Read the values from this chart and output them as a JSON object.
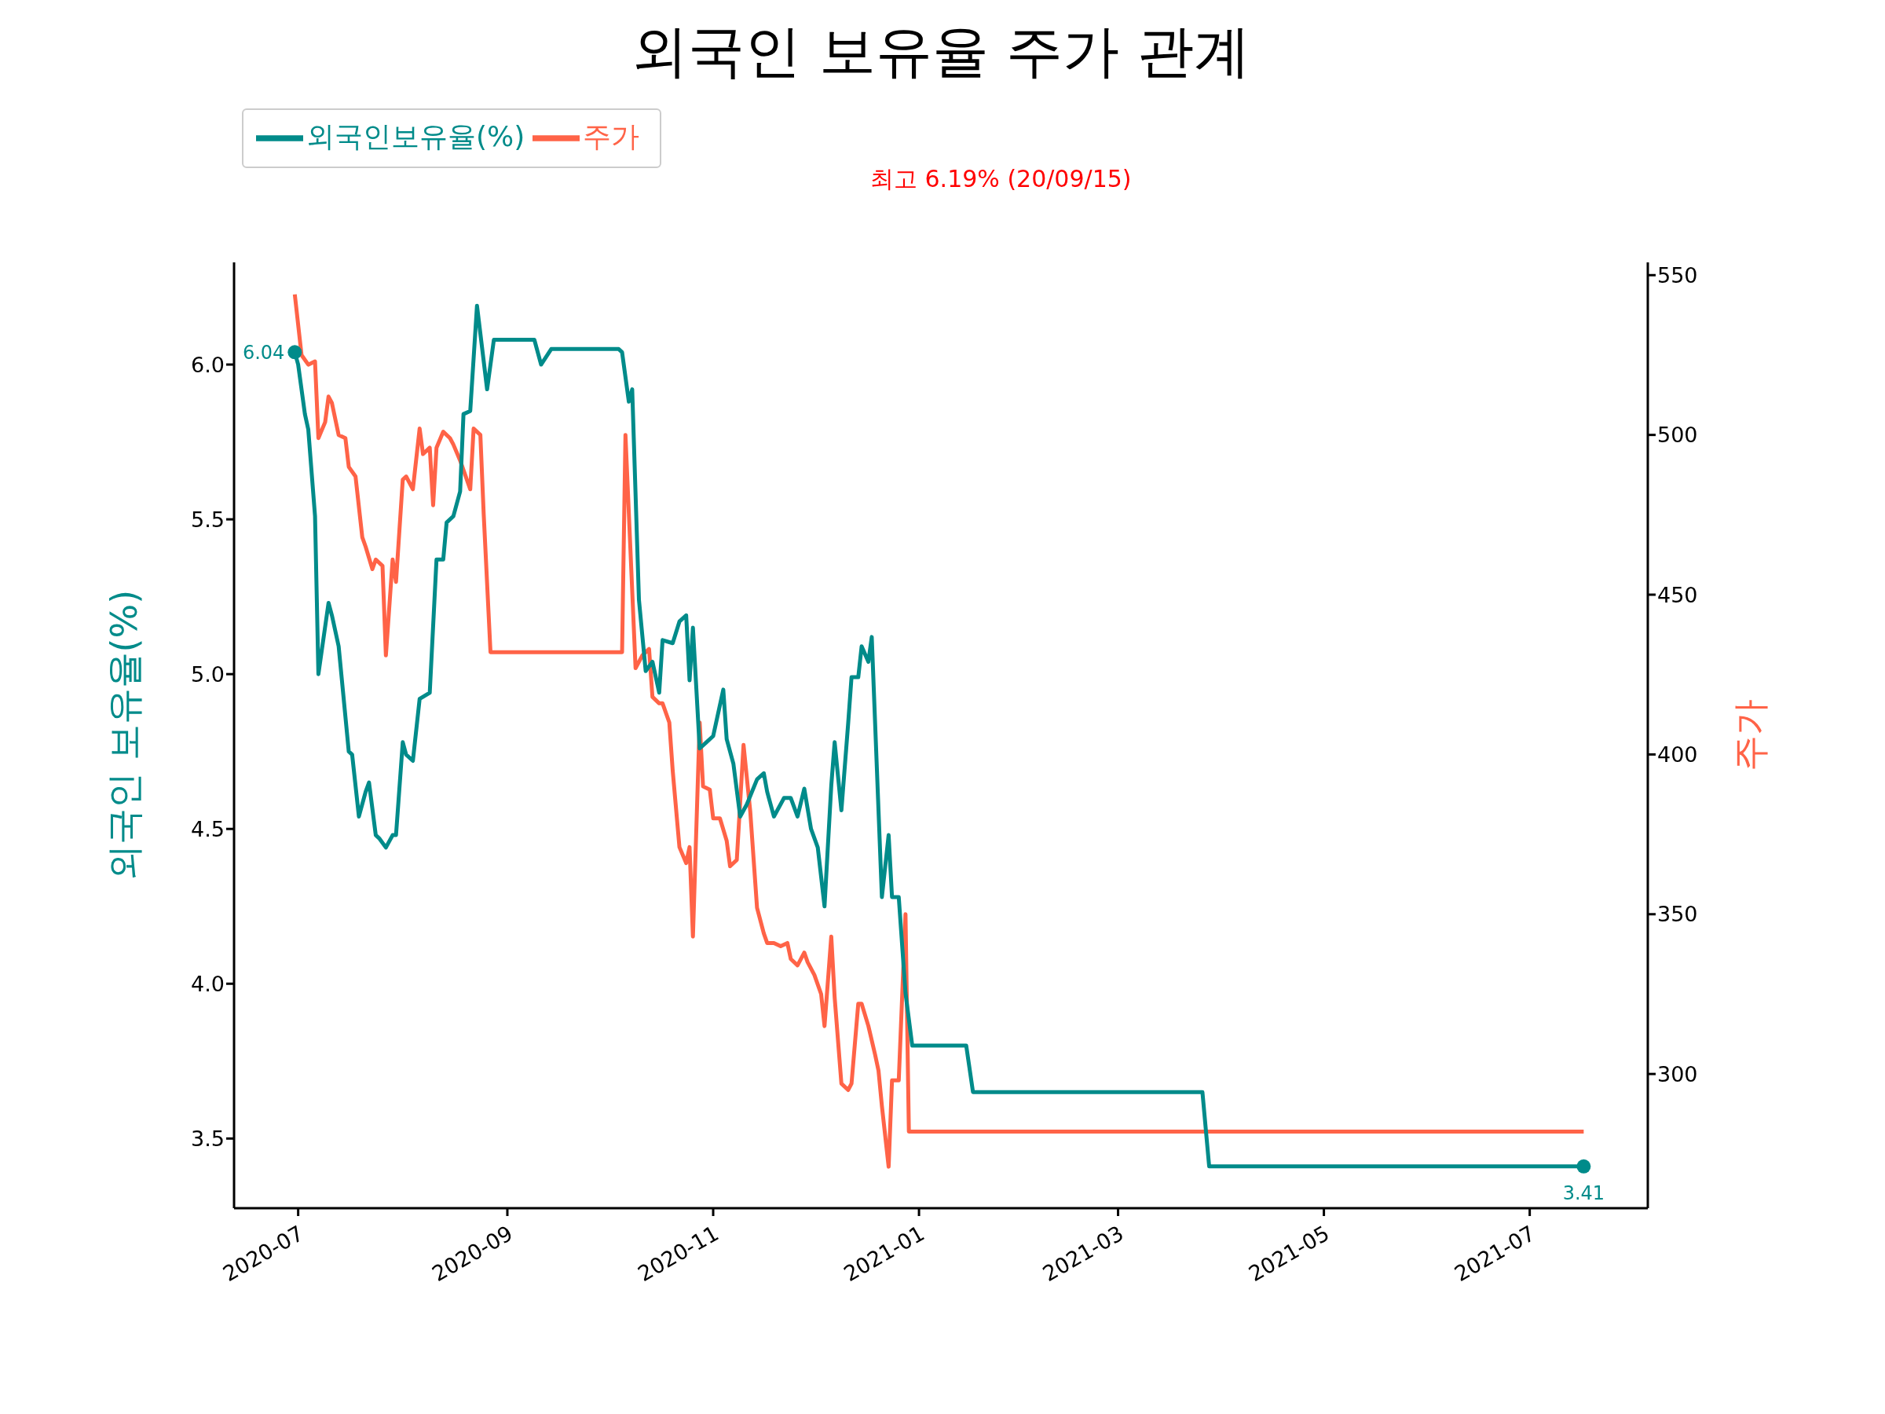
{
  "chart_data": {
    "type": "line",
    "title": "외국인 보유율 주가 관계",
    "ylabel": "외국인 보유율(%)",
    "y2label": "주가",
    "legend": "top left",
    "xlim": [
      "2020-06-12",
      "2021-08-05"
    ],
    "xticks": [
      "2020-07",
      "2020-09",
      "2020-11",
      "2021-01",
      "2021-03",
      "2021-05",
      "2021-07"
    ],
    "ylim": [
      3.275,
      6.33
    ],
    "yticks": [
      3.5,
      {
        "value": 4,
        "label": "4.0"
      },
      4.5,
      {
        "value": 5,
        "label": "5.0"
      },
      5.5,
      {
        "value": 6,
        "label": "6.0"
      }
    ],
    "y2lim": [
      258,
      554
    ],
    "y2ticks": [
      300,
      350,
      400,
      450,
      500,
      550
    ],
    "series": [
      {
        "name": "외국인보유율(%)",
        "color": "#008b8a",
        "x": [
          "2020-06-30",
          "2020-07-01",
          "2020-07-03",
          "2020-07-04",
          "2020-07-06",
          "2020-07-07",
          "2020-07-10",
          "2020-07-11",
          "2020-07-13",
          "2020-07-16",
          "2020-07-17",
          "2020-07-19",
          "2020-07-21",
          "2020-07-22",
          "2020-07-24",
          "2020-07-25",
          "2020-07-27",
          "2020-07-29",
          "2020-07-30",
          "2020-08-01",
          "2020-08-02",
          "2020-08-04",
          "2020-08-06",
          "2020-08-09",
          "2020-08-11",
          "2020-08-13",
          "2020-08-14",
          "2020-08-16",
          "2020-08-18",
          "2020-08-19",
          "2020-08-21",
          "2020-08-23",
          "2020-08-26",
          "2020-08-28",
          "2020-09-09",
          "2020-09-11",
          "2020-09-14",
          "2020-10-04",
          "2020-10-05",
          "2020-10-07",
          "2020-10-08",
          "2020-10-10",
          "2020-10-12",
          "2020-10-14",
          "2020-10-16",
          "2020-10-17",
          "2020-10-20",
          "2020-10-22",
          "2020-10-24",
          "2020-10-25",
          "2020-10-26",
          "2020-10-28",
          "2020-10-30",
          "2020-11-01",
          "2020-11-04",
          "2020-11-05",
          "2020-11-07",
          "2020-11-09",
          "2020-11-11",
          "2020-11-14",
          "2020-11-16",
          "2020-11-17",
          "2020-11-19",
          "2020-11-22",
          "2020-11-24",
          "2020-11-26",
          "2020-11-28",
          "2020-11-30",
          "2020-12-02",
          "2020-12-04",
          "2020-12-06",
          "2020-12-07",
          "2020-12-09",
          "2020-12-11",
          "2020-12-12",
          "2020-12-14",
          "2020-12-15",
          "2020-12-17",
          "2020-12-18",
          "2020-12-20",
          "2020-12-21",
          "2020-12-23",
          "2020-12-24",
          "2020-12-26",
          "2020-12-28",
          "2020-12-30",
          "2021-01-15",
          "2021-01-17",
          "2021-03-26",
          "2021-03-28",
          "2021-07-17"
        ],
        "values": [
          6.04,
          6.0,
          5.84,
          5.79,
          5.51,
          5.0,
          5.23,
          5.19,
          5.09,
          4.75,
          4.74,
          4.54,
          4.62,
          4.65,
          4.48,
          4.47,
          4.44,
          4.48,
          4.48,
          4.78,
          4.74,
          4.72,
          4.92,
          4.94,
          5.37,
          5.37,
          5.49,
          5.51,
          5.59,
          5.84,
          5.85,
          6.19,
          5.92,
          6.08,
          6.08,
          6.0,
          6.05,
          6.05,
          6.04,
          5.88,
          5.92,
          5.24,
          5.01,
          5.04,
          4.94,
          5.11,
          5.1,
          5.17,
          5.19,
          4.98,
          5.15,
          4.76,
          4.78,
          4.8,
          4.95,
          4.79,
          4.71,
          4.54,
          4.58,
          4.66,
          4.68,
          4.62,
          4.54,
          4.6,
          4.6,
          4.54,
          4.63,
          4.5,
          4.44,
          4.25,
          4.64,
          4.78,
          4.56,
          4.84,
          4.99,
          4.99,
          5.09,
          5.04,
          5.12,
          4.56,
          4.28,
          4.48,
          4.28,
          4.28,
          3.97,
          3.8,
          3.8,
          3.65,
          3.65,
          3.41,
          3.41
        ]
      },
      {
        "name": "주가",
        "color": "#ff6347",
        "axis": "y2",
        "x": [
          "2020-06-30",
          "2020-07-02",
          "2020-07-04",
          "2020-07-06",
          "2020-07-07",
          "2020-07-09",
          "2020-07-10",
          "2020-07-11",
          "2020-07-13",
          "2020-07-15",
          "2020-07-16",
          "2020-07-18",
          "2020-07-20",
          "2020-07-21",
          "2020-07-23",
          "2020-07-24",
          "2020-07-26",
          "2020-07-27",
          "2020-07-29",
          "2020-07-30",
          "2020-08-01",
          "2020-08-02",
          "2020-08-04",
          "2020-08-06",
          "2020-08-07",
          "2020-08-09",
          "2020-08-10",
          "2020-08-11",
          "2020-08-13",
          "2020-08-15",
          "2020-08-16",
          "2020-08-18",
          "2020-08-21",
          "2020-08-22",
          "2020-08-24",
          "2020-08-25",
          "2020-08-27",
          "2020-10-05",
          "2020-10-06",
          "2020-10-09",
          "2020-10-11",
          "2020-10-13",
          "2020-10-14",
          "2020-10-16",
          "2020-10-17",
          "2020-10-19",
          "2020-10-20",
          "2020-10-22",
          "2020-10-24",
          "2020-10-25",
          "2020-10-26",
          "2020-10-28",
          "2020-10-29",
          "2020-10-31",
          "2020-11-01",
          "2020-11-03",
          "2020-11-05",
          "2020-11-06",
          "2020-11-08",
          "2020-11-10",
          "2020-11-12",
          "2020-11-14",
          "2020-11-16",
          "2020-11-17",
          "2020-11-19",
          "2020-11-21",
          "2020-11-23",
          "2020-11-24",
          "2020-11-26",
          "2020-11-28",
          "2020-11-29",
          "2020-12-01",
          "2020-12-03",
          "2020-12-04",
          "2020-12-06",
          "2020-12-07",
          "2020-12-09",
          "2020-12-11",
          "2020-12-12",
          "2020-12-14",
          "2020-12-15",
          "2020-12-17",
          "2020-12-19",
          "2020-12-20",
          "2020-12-21",
          "2020-12-23",
          "2020-12-24",
          "2020-12-26",
          "2020-12-28",
          "2020-12-29",
          "2021-07-17"
        ],
        "values": [
          544,
          525,
          522,
          523,
          499,
          504,
          512,
          510,
          500,
          499,
          490,
          487,
          468,
          465,
          458,
          461,
          459,
          431,
          461,
          454,
          486,
          487,
          483,
          502,
          494,
          496,
          478,
          496,
          501,
          499,
          497,
          492,
          483,
          502,
          500,
          475,
          432,
          432,
          500,
          427,
          431,
          433,
          418,
          416,
          416,
          410,
          395,
          371,
          366,
          371,
          343,
          410,
          390,
          389,
          380,
          380,
          373,
          365,
          367,
          403,
          382,
          352,
          344,
          341,
          341,
          340,
          341,
          336,
          334,
          338,
          335,
          331,
          325,
          315,
          343,
          324,
          297,
          295,
          297,
          322,
          322,
          315,
          306,
          301,
          290,
          271,
          298,
          298,
          350,
          282,
          282
        ]
      }
    ],
    "annotations": [
      "최고 6.19% (20/09/15)",
      {
        "text": "6.04",
        "x": "2020-06-30",
        "y": 6.04
      },
      {
        "text": "3.41",
        "x": "2021-07-17",
        "y": 3.41
      }
    ]
  }
}
